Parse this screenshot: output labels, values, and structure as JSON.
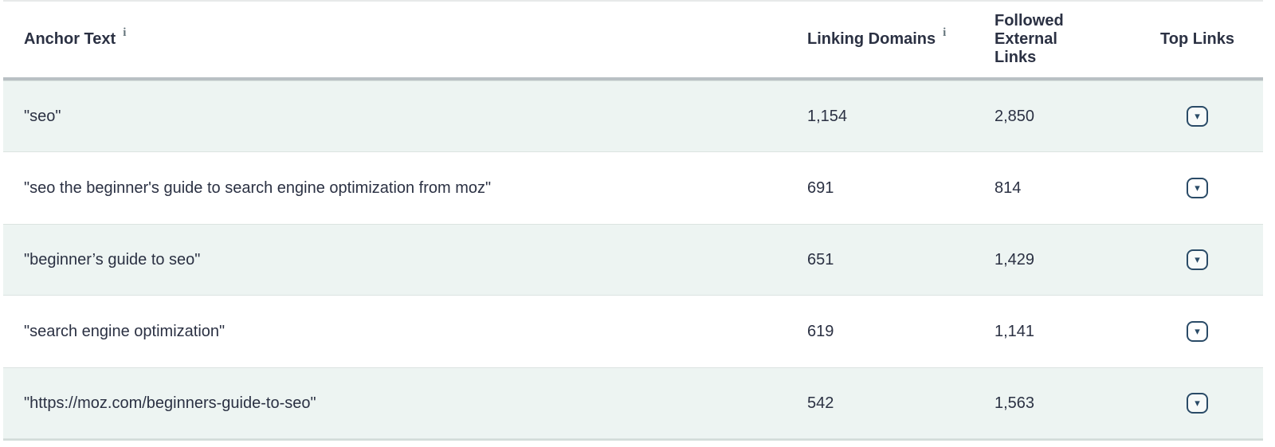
{
  "table": {
    "info_icon_glyph": "i",
    "dropdown_icon": "▾",
    "columns": [
      {
        "label": "Anchor Text",
        "has_info_icon": true
      },
      {
        "label": "Linking Domains",
        "has_info_icon": true
      },
      {
        "label": "Followed External Links",
        "has_info_icon": false
      },
      {
        "label": "Top Links",
        "has_info_icon": false
      }
    ],
    "rows": [
      {
        "anchor_text": "\"seo\"",
        "linking_domains": "1,154",
        "followed_external_links": "2,850"
      },
      {
        "anchor_text": "\"seo the beginner's guide to search engine optimization from moz\"",
        "linking_domains": "691",
        "followed_external_links": "814"
      },
      {
        "anchor_text": "\"beginner’s guide to seo\"",
        "linking_domains": "651",
        "followed_external_links": "1,429"
      },
      {
        "anchor_text": "\"search engine optimization\"",
        "linking_domains": "619",
        "followed_external_links": "1,141"
      },
      {
        "anchor_text": "\"https://moz.com/beginners-guide-to-seo\"",
        "linking_domains": "542",
        "followed_external_links": "1,563"
      }
    ]
  },
  "colors": {
    "text_navy": "#2b3143",
    "row_stripe": "#edf4f2",
    "row_stripe_border": "#dbe3e1",
    "header_bottom_border": "#b9c0c4",
    "button_outline": "#2a4b67",
    "info_icon_gray": "#66767d"
  }
}
